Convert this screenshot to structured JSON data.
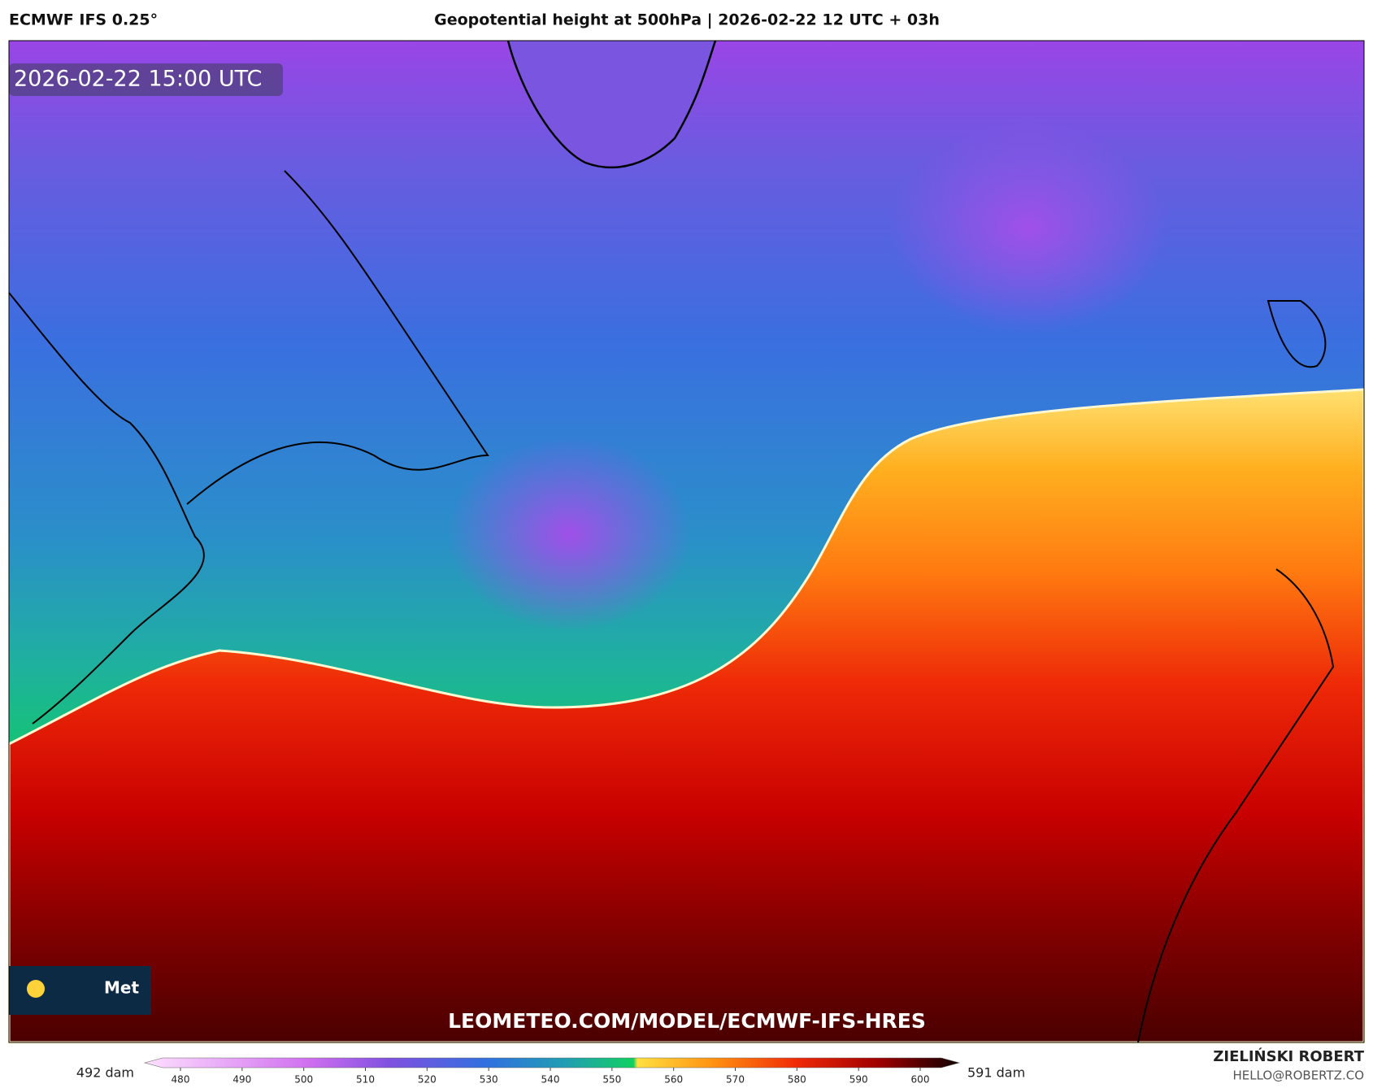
{
  "header": {
    "model": "ECMWF IFS 0.25°",
    "title": "Geopotential height at 500hPa | 2026-02-22 12 UTC + 03h"
  },
  "map": {
    "timestamp": "2026-02-22 15:00 UTC",
    "watermark": "LEOMETEO.COM/MODEL/ECMWF-IFS-HRES",
    "logo": "Met"
  },
  "colorbar": {
    "min_label": "492 dam",
    "max_label": "591 dam",
    "ticks": [
      480,
      490,
      500,
      510,
      520,
      530,
      540,
      550,
      560,
      570,
      580,
      590,
      600
    ]
  },
  "footer": {
    "author": "ZIELIŃSKI ROBERT",
    "email": "HELLO@ROBERTZ.CO"
  }
}
